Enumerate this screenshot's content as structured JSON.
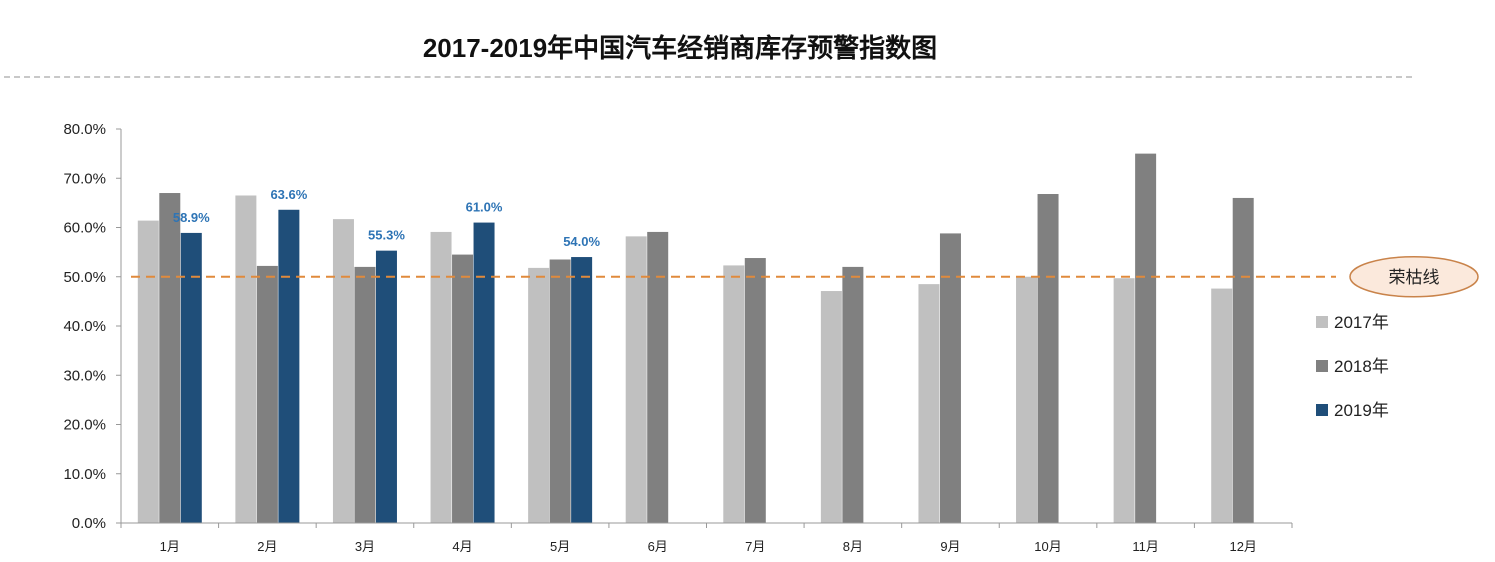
{
  "chart_data": {
    "type": "bar",
    "title": "2017-2019年中国汽车经销商库存预警指数图",
    "xlabel": "",
    "ylabel": "",
    "ylim": [
      0,
      80
    ],
    "yticks": [
      "0.0%",
      "10.0%",
      "20.0%",
      "30.0%",
      "40.0%",
      "50.0%",
      "60.0%",
      "70.0%",
      "80.0%"
    ],
    "categories": [
      "1月",
      "2月",
      "3月",
      "4月",
      "5月",
      "6月",
      "7月",
      "8月",
      "9月",
      "10月",
      "11月",
      "12月"
    ],
    "series": [
      {
        "name": "2017年",
        "color": "#c0c0c0",
        "values": [
          61.4,
          66.5,
          61.7,
          59.1,
          51.8,
          58.2,
          52.3,
          47.1,
          48.5,
          50.0,
          49.7,
          47.6
        ]
      },
      {
        "name": "2018年",
        "color": "#808080",
        "values": [
          67.0,
          52.2,
          52.0,
          54.5,
          53.5,
          59.1,
          53.8,
          52.0,
          58.8,
          66.8,
          75.0,
          66.0
        ]
      },
      {
        "name": "2019年",
        "color": "#1f4e79",
        "values": [
          58.9,
          63.6,
          55.3,
          61.0,
          54.0,
          null,
          null,
          null,
          null,
          null,
          null,
          null
        ],
        "labels": [
          "58.9%",
          "63.6%",
          "55.3%",
          "61.0%",
          "54.0%"
        ]
      }
    ],
    "reference_line": {
      "value": 50,
      "label": "荣枯线",
      "color": "#e08a3c"
    },
    "legend_position": "right"
  }
}
